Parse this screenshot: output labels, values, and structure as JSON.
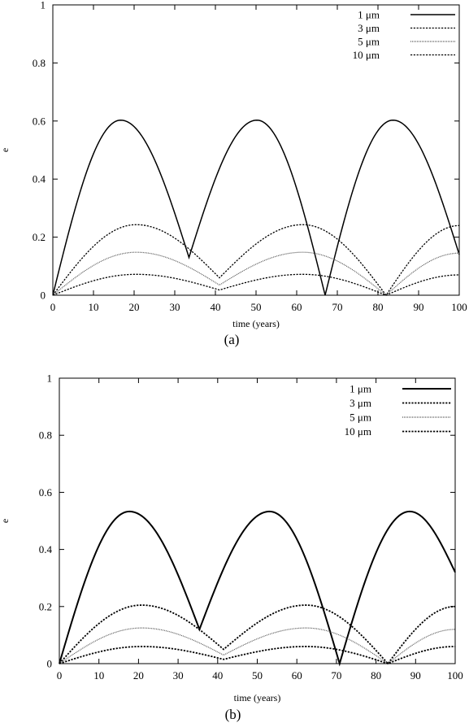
{
  "chart_data": [
    {
      "type": "line",
      "panel_label": "(a)",
      "xlabel": "time (years)",
      "ylabel": "e",
      "xlim": [
        0,
        100
      ],
      "ylim": [
        0,
        1
      ],
      "xticks": [
        0,
        10,
        20,
        30,
        40,
        50,
        60,
        70,
        80,
        90,
        100
      ],
      "yticks": [
        0,
        0.2,
        0.4,
        0.6,
        0.8,
        1
      ],
      "ytick_labels": [
        "0",
        "0.2",
        "0.4",
        "0.6",
        "0.8",
        "1"
      ],
      "legend_position": "top-right",
      "grid": false,
      "series": [
        {
          "name": "1 μm",
          "style": "solid",
          "color": "#000000",
          "x": [
            0,
            16.7,
            33.5,
            50.2,
            67,
            83.7,
            100
          ],
          "y": [
            0,
            0.603,
            0.13,
            0.603,
            0,
            0.603,
            0.14
          ]
        },
        {
          "name": "3 μm",
          "style": "dotted",
          "color": "#000000",
          "x": [
            0,
            20.5,
            41,
            61.5,
            82,
            100
          ],
          "y": [
            0,
            0.243,
            0.06,
            0.243,
            0,
            0.24
          ]
        },
        {
          "name": "5 μm",
          "style": "fine-dotted",
          "color": "#555555",
          "x": [
            0,
            20.5,
            41,
            61.5,
            82,
            100
          ],
          "y": [
            0,
            0.148,
            0.035,
            0.148,
            0,
            0.145
          ]
        },
        {
          "name": "10 μm",
          "style": "dotted",
          "color": "#000000",
          "x": [
            0,
            20.5,
            41,
            61.5,
            82,
            100
          ],
          "y": [
            0,
            0.072,
            0.018,
            0.072,
            0,
            0.07
          ]
        }
      ]
    },
    {
      "type": "line",
      "panel_label": "(b)",
      "xlabel": "time (years)",
      "ylabel": "e",
      "xlim": [
        0,
        100
      ],
      "ylim": [
        0,
        1
      ],
      "xticks": [
        0,
        10,
        20,
        30,
        40,
        50,
        60,
        70,
        80,
        90,
        100
      ],
      "yticks": [
        0,
        0.2,
        0.4,
        0.6,
        0.8,
        1
      ],
      "ytick_labels": [
        "0",
        "0.2",
        "0.4",
        "0.6",
        "0.8",
        "1"
      ],
      "legend_position": "top-right",
      "grid": false,
      "series": [
        {
          "name": "1 μm",
          "style": "solid",
          "color": "#000000",
          "x": [
            0,
            17.7,
            35.4,
            53.1,
            70.8,
            88.5,
            100
          ],
          "y": [
            0,
            0.533,
            0.12,
            0.533,
            0,
            0.533,
            0.32
          ]
        },
        {
          "name": "3 μm",
          "style": "dotted",
          "color": "#000000",
          "x": [
            0,
            20.8,
            41.5,
            62.3,
            83,
            100
          ],
          "y": [
            0,
            0.205,
            0.05,
            0.205,
            0,
            0.2
          ]
        },
        {
          "name": "5 μm",
          "style": "fine-dotted",
          "color": "#555555",
          "x": [
            0,
            20.8,
            41.5,
            62.3,
            83,
            100
          ],
          "y": [
            0,
            0.125,
            0.03,
            0.125,
            0,
            0.12
          ]
        },
        {
          "name": "10 μm",
          "style": "dotted",
          "color": "#000000",
          "x": [
            0,
            20.8,
            41.5,
            62.3,
            83,
            100
          ],
          "y": [
            0,
            0.06,
            0.015,
            0.06,
            0,
            0.06
          ]
        }
      ]
    }
  ]
}
